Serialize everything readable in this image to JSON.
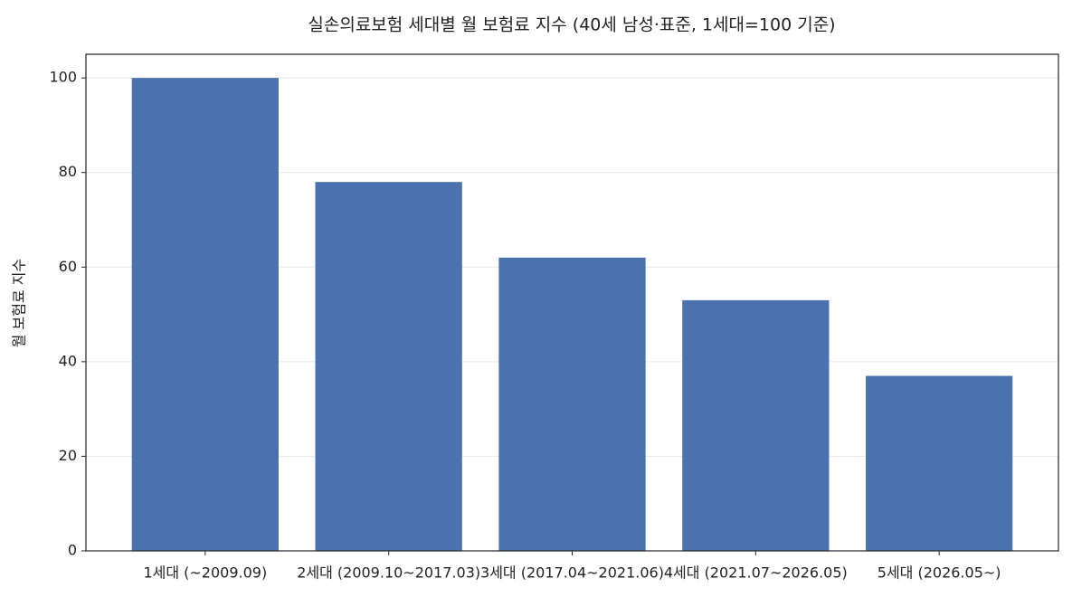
{
  "chart_data": {
    "type": "bar",
    "title": "실손의료보험 세대별 월 보험료 지수 (40세 남성·표준, 1세대=100 기준)",
    "y_label": "월 보험료 지수",
    "categories": [
      "1세대 (~2009.09)",
      "2세대 (2009.10~2017.03)",
      "3세대 (2017.04~2021.06)",
      "4세대 (2021.07~2026.05)",
      "5세대 (2026.05~)"
    ],
    "values": [
      100,
      78,
      62,
      53,
      37
    ],
    "color": "#4a72ae",
    "ylim": [
      0,
      105
    ],
    "yticks": [
      0,
      20,
      40,
      60,
      80,
      100
    ],
    "grid": true
  }
}
